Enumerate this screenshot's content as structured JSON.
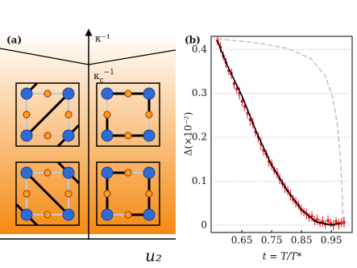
{
  "panel_a": {
    "label": "(a)",
    "vertical_axis_label": "κ⁻¹",
    "critical_label": {
      "base": "κ",
      "sub": "c",
      "sup": "−1"
    },
    "horizontal_axis_label": "u₂"
  },
  "chart_data": {
    "type": "scatter",
    "label": "(b)",
    "xlabel": "t = T/T*",
    "ylabel": "Δ(×10⁻²)",
    "x": [
      0.568,
      0.578,
      0.588,
      0.597,
      0.606,
      0.615,
      0.624,
      0.633,
      0.642,
      0.651,
      0.66,
      0.669,
      0.678,
      0.687,
      0.696,
      0.705,
      0.714,
      0.723,
      0.732,
      0.741,
      0.75,
      0.759,
      0.768,
      0.777,
      0.786,
      0.795,
      0.804,
      0.813,
      0.822,
      0.831,
      0.84,
      0.849,
      0.858,
      0.867,
      0.876,
      0.885,
      0.894,
      0.903,
      0.912,
      0.921,
      0.93,
      0.939,
      0.948,
      0.957,
      0.966,
      0.975,
      0.984,
      0.993
    ],
    "values": [
      0.42,
      0.405,
      0.385,
      0.37,
      0.352,
      0.345,
      0.322,
      0.31,
      0.3,
      0.282,
      0.27,
      0.255,
      0.24,
      0.232,
      0.212,
      0.2,
      0.185,
      0.17,
      0.162,
      0.145,
      0.138,
      0.125,
      0.118,
      0.105,
      0.095,
      0.085,
      0.078,
      0.068,
      0.058,
      0.052,
      0.045,
      0.035,
      0.03,
      0.025,
      0.018,
      0.02,
      0.01,
      0.012,
      0.005,
      0.008,
      0.002,
      0.01,
      0.004,
      0.0,
      0.008,
      0.002,
      0.005,
      0.006
    ],
    "errors": [
      0.01,
      0.012,
      0.01,
      0.012,
      0.01,
      0.012,
      0.012,
      0.01,
      0.014,
      0.012,
      0.01,
      0.012,
      0.014,
      0.012,
      0.01,
      0.012,
      0.014,
      0.012,
      0.01,
      0.012,
      0.012,
      0.01,
      0.012,
      0.012,
      0.01,
      0.012,
      0.01,
      0.012,
      0.01,
      0.012,
      0.01,
      0.012,
      0.01,
      0.012,
      0.01,
      0.012,
      0.01,
      0.012,
      0.01,
      0.012,
      0.01,
      0.012,
      0.01,
      0.012,
      0.01,
      0.012,
      0.01,
      0.012
    ],
    "color": "#e3121b",
    "fit": {
      "x": [
        0.568,
        0.6,
        0.65,
        0.7,
        0.75,
        0.8,
        0.85,
        0.9,
        0.95,
        0.98
      ],
      "values": [
        0.42,
        0.365,
        0.295,
        0.21,
        0.136,
        0.081,
        0.035,
        0.007,
        0.0,
        0.005
      ],
      "color": "#000000"
    },
    "reference": {
      "x": [
        0.568,
        0.6,
        0.7,
        0.8,
        0.88,
        0.93,
        0.955,
        0.97,
        0.98,
        0.986,
        0.99
      ],
      "values": [
        0.425,
        0.422,
        0.415,
        0.403,
        0.38,
        0.34,
        0.29,
        0.23,
        0.16,
        0.08,
        0.0
      ],
      "color": "#b0b0b0"
    },
    "xlim": [
      0.547,
      1.02
    ],
    "ylim": [
      -0.017,
      0.43
    ],
    "xticks": [
      0.65,
      0.75,
      0.85,
      0.95
    ],
    "yticks": [
      0,
      0.1,
      0.2,
      0.3,
      0.4
    ],
    "grid": true
  }
}
